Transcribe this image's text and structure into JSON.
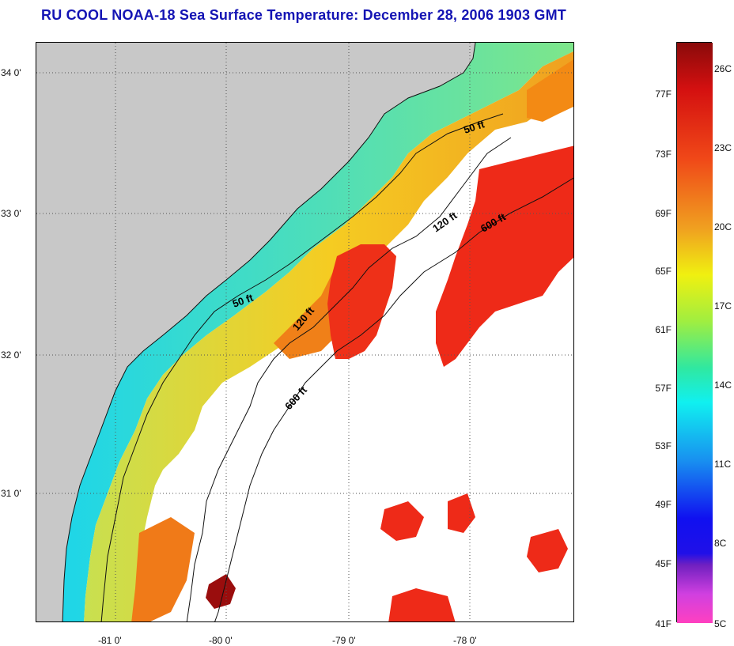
{
  "title": "RU COOL  NOAA-18  Sea Surface Temperature:  December 28, 2006 1903 GMT",
  "map": {
    "lat_labels": [
      "34 0'",
      "33 0'",
      "32 0'",
      "31 0'"
    ],
    "lon_labels": [
      "-81 0'",
      "-80 0'",
      "-79 0'",
      "-78 0'"
    ],
    "contours": [
      {
        "label": "50 ft",
        "id": "contour-50ft-north"
      },
      {
        "label": "50 ft",
        "id": "contour-50ft-south"
      },
      {
        "label": "120 ft",
        "id": "contour-120ft-north"
      },
      {
        "label": "120 ft",
        "id": "contour-120ft-south"
      },
      {
        "label": "600 ft",
        "id": "contour-600ft-north"
      },
      {
        "label": "600 ft",
        "id": "contour-600ft-south"
      }
    ],
    "colors": {
      "land": "#c8c8c8",
      "cloud": "#ffffff",
      "cool": "#22e4e0",
      "mid": "#f0d020",
      "warm": "#f07a10",
      "hot": "#ee2a18",
      "hottest": "#9a0d0d"
    }
  },
  "colorbar": {
    "fahrenheit": [
      "77F",
      "73F",
      "69F",
      "65F",
      "61F",
      "57F",
      "53F",
      "49F",
      "45F",
      "41F"
    ],
    "celsius": [
      "26C",
      "23C",
      "20C",
      "17C",
      "14C",
      "11C",
      "8C",
      "5C"
    ]
  }
}
